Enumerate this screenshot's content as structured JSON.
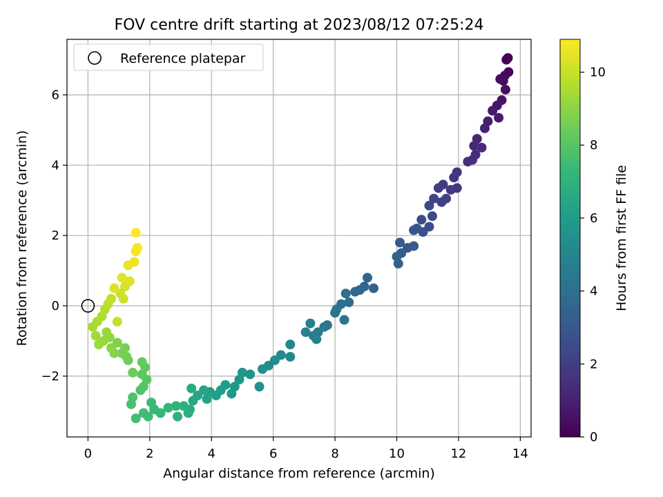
{
  "chart_data": {
    "type": "scatter",
    "title": "FOV centre drift starting at 2023/08/12 07:25:24",
    "xlabel": "Angular distance from reference (arcmin)",
    "ylabel": "Rotation from reference (arcmin)",
    "xlim": [
      -0.68,
      14.35
    ],
    "ylim": [
      -3.73,
      7.58
    ],
    "xticks": [
      0,
      2,
      4,
      6,
      8,
      10,
      12,
      14
    ],
    "yticks": [
      -2,
      0,
      2,
      4,
      6
    ],
    "ytick_labels": [
      "−2",
      "0",
      "2",
      "4",
      "6"
    ],
    "grid": true,
    "legend": {
      "placement": "top-left",
      "entries": [
        "Reference platepar"
      ]
    },
    "reference_point": {
      "x": 0,
      "y": 0
    },
    "colorbar": {
      "label": "Hours from first FF file",
      "colormap": "viridis",
      "range": [
        0,
        10.9
      ],
      "ticks": [
        0,
        2,
        4,
        6,
        8,
        10
      ]
    },
    "series": [
      {
        "encoding": "[x, y, hours]",
        "points": [
          [
            13.6,
            7.05
          ],
          [
            13.55,
            7.0
          ],
          [
            13.62,
            6.65
          ],
          [
            13.5,
            6.55
          ],
          [
            13.45,
            6.4
          ],
          [
            13.35,
            6.45
          ],
          [
            13.52,
            6.15
          ],
          [
            13.4,
            5.85
          ],
          [
            13.25,
            5.7
          ],
          [
            13.1,
            5.55
          ],
          [
            13.3,
            5.35
          ],
          [
            12.95,
            5.25
          ],
          [
            12.85,
            5.05
          ],
          [
            12.6,
            4.75
          ],
          [
            12.5,
            4.55
          ],
          [
            12.75,
            4.5
          ],
          [
            12.55,
            4.3
          ],
          [
            12.45,
            4.15
          ],
          [
            12.3,
            4.1
          ],
          [
            11.95,
            3.8
          ],
          [
            11.85,
            3.65
          ],
          [
            11.95,
            3.35
          ],
          [
            11.75,
            3.3
          ],
          [
            11.5,
            3.45
          ],
          [
            11.35,
            3.35
          ],
          [
            11.6,
            3.05
          ],
          [
            11.45,
            2.95
          ],
          [
            11.2,
            3.05
          ],
          [
            11.05,
            2.85
          ],
          [
            11.15,
            2.55
          ],
          [
            10.8,
            2.45
          ],
          [
            11.05,
            2.25
          ],
          [
            10.85,
            2.1
          ],
          [
            10.65,
            2.2
          ],
          [
            10.55,
            2.15
          ],
          [
            10.35,
            1.65
          ],
          [
            10.55,
            1.7
          ],
          [
            10.1,
            1.8
          ],
          [
            10.15,
            1.5
          ],
          [
            10.05,
            1.2
          ],
          [
            10.0,
            1.4
          ],
          [
            9.25,
            0.5
          ],
          [
            9.05,
            0.8
          ],
          [
            8.95,
            0.55
          ],
          [
            8.8,
            0.45
          ],
          [
            8.65,
            0.4
          ],
          [
            8.45,
            0.1
          ],
          [
            8.35,
            0.35
          ],
          [
            8.2,
            0.05
          ],
          [
            8.05,
            -0.1
          ],
          [
            8.3,
            -0.4
          ],
          [
            8.0,
            -0.2
          ],
          [
            7.75,
            -0.55
          ],
          [
            7.65,
            -0.6
          ],
          [
            7.45,
            -0.75
          ],
          [
            7.3,
            -0.85
          ],
          [
            7.2,
            -0.5
          ],
          [
            7.05,
            -0.75
          ],
          [
            7.4,
            -0.95
          ],
          [
            6.55,
            -1.1
          ],
          [
            6.55,
            -1.45
          ],
          [
            6.25,
            -1.4
          ],
          [
            6.05,
            -1.55
          ],
          [
            5.85,
            -1.7
          ],
          [
            5.65,
            -1.8
          ],
          [
            5.55,
            -2.3
          ],
          [
            5.25,
            -1.95
          ],
          [
            5.0,
            -1.9
          ],
          [
            4.9,
            -2.1
          ],
          [
            4.75,
            -2.3
          ],
          [
            4.65,
            -2.5
          ],
          [
            4.45,
            -2.25
          ],
          [
            4.3,
            -2.4
          ],
          [
            4.15,
            -2.55
          ],
          [
            3.95,
            -2.45
          ],
          [
            3.85,
            -2.65
          ],
          [
            3.75,
            -2.4
          ],
          [
            3.55,
            -2.55
          ],
          [
            3.4,
            -2.7
          ],
          [
            3.35,
            -2.35
          ],
          [
            3.3,
            -2.95
          ],
          [
            3.25,
            -3.05
          ],
          [
            3.1,
            -2.85
          ],
          [
            2.9,
            -3.15
          ],
          [
            2.85,
            -2.85
          ],
          [
            2.6,
            -2.9
          ],
          [
            2.35,
            -3.05
          ],
          [
            2.15,
            -2.95
          ],
          [
            2.05,
            -2.75
          ],
          [
            1.95,
            -3.15
          ],
          [
            1.8,
            -3.05
          ],
          [
            1.55,
            -3.2
          ],
          [
            1.4,
            -2.8
          ],
          [
            1.45,
            -2.6
          ],
          [
            1.7,
            -2.4
          ],
          [
            1.8,
            -2.3
          ],
          [
            1.9,
            -2.1
          ],
          [
            1.75,
            -1.95
          ],
          [
            1.85,
            -1.75
          ],
          [
            1.75,
            -1.6
          ],
          [
            1.45,
            -1.9
          ],
          [
            1.3,
            -1.55
          ],
          [
            1.25,
            -1.45
          ],
          [
            1.1,
            -1.35
          ],
          [
            1.2,
            -1.2
          ],
          [
            0.95,
            -1.05
          ],
          [
            0.85,
            -1.35
          ],
          [
            0.75,
            -1.2
          ],
          [
            0.7,
            -0.9
          ],
          [
            0.5,
            -1.0
          ],
          [
            0.6,
            -0.75
          ],
          [
            0.35,
            -1.1
          ],
          [
            0.25,
            -0.85
          ],
          [
            0.15,
            -0.6
          ],
          [
            0.3,
            -0.45
          ],
          [
            0.45,
            -0.3
          ],
          [
            0.55,
            -0.1
          ],
          [
            0.65,
            0.05
          ],
          [
            0.75,
            0.2
          ],
          [
            0.95,
            -0.45
          ],
          [
            1.05,
            0.35
          ],
          [
            1.15,
            0.2
          ],
          [
            1.2,
            0.55
          ],
          [
            0.85,
            0.5
          ],
          [
            1.35,
            0.7
          ],
          [
            1.1,
            0.8
          ],
          [
            1.3,
            1.15
          ],
          [
            1.5,
            1.25
          ],
          [
            1.55,
            1.55
          ],
          [
            1.6,
            1.65
          ],
          [
            1.55,
            2.08
          ]
        ]
      }
    ]
  }
}
